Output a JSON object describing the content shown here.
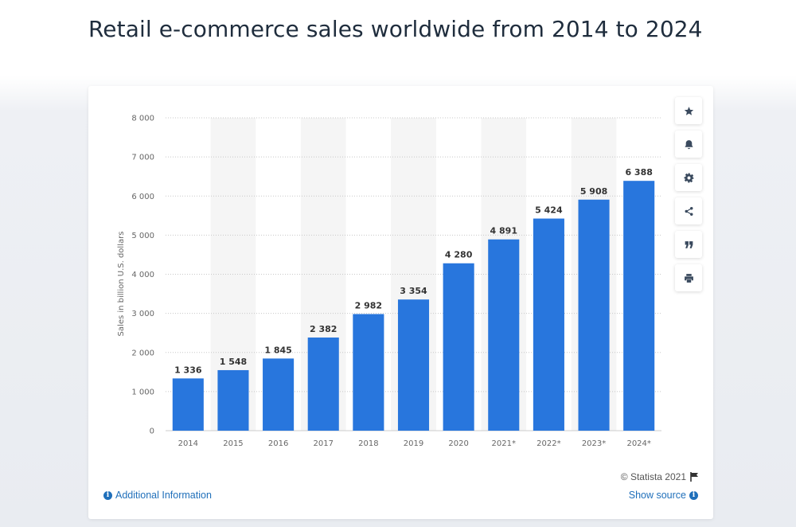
{
  "page": {
    "title": "Retail e-commerce sales worldwide from 2014 to 2024"
  },
  "toolbar": {
    "buttons": [
      {
        "icon": "star-icon",
        "label": "Favorite"
      },
      {
        "icon": "bell-icon",
        "label": "Notification"
      },
      {
        "icon": "gear-icon",
        "label": "Settings"
      },
      {
        "icon": "share-icon",
        "label": "Share"
      },
      {
        "icon": "quote-icon",
        "label": "Cite"
      },
      {
        "icon": "print-icon",
        "label": "Print"
      }
    ]
  },
  "footer": {
    "copyright": "© Statista 2021",
    "additional_info": "Additional Information",
    "show_source": "Show source",
    "info_glyph": "i"
  },
  "colors": {
    "bar": "#2876dd",
    "band": "#f5f5f5",
    "link": "#1f6fba"
  },
  "chart_data": {
    "type": "bar",
    "title": "Retail e-commerce sales worldwide from 2014 to 2024",
    "xlabel": "",
    "ylabel": "Sales in billion U.S. dollars",
    "categories": [
      "2014",
      "2015",
      "2016",
      "2017",
      "2018",
      "2019",
      "2020",
      "2021*",
      "2022*",
      "2023*",
      "2024*"
    ],
    "values": [
      1336,
      1548,
      1845,
      2382,
      2982,
      3354,
      4280,
      4891,
      5424,
      5908,
      6388
    ],
    "value_labels": [
      "1 336",
      "1 548",
      "1 845",
      "2 382",
      "2 982",
      "3 354",
      "4 280",
      "4 891",
      "5 424",
      "5 908",
      "6 388"
    ],
    "ylim": [
      0,
      8000
    ],
    "yticks": [
      0,
      1000,
      2000,
      3000,
      4000,
      5000,
      6000,
      7000,
      8000
    ],
    "ytick_labels": [
      "0",
      "1 000",
      "2 000",
      "3 000",
      "4 000",
      "5 000",
      "6 000",
      "7 000",
      "8 000"
    ],
    "grid": true,
    "legend": "none"
  }
}
